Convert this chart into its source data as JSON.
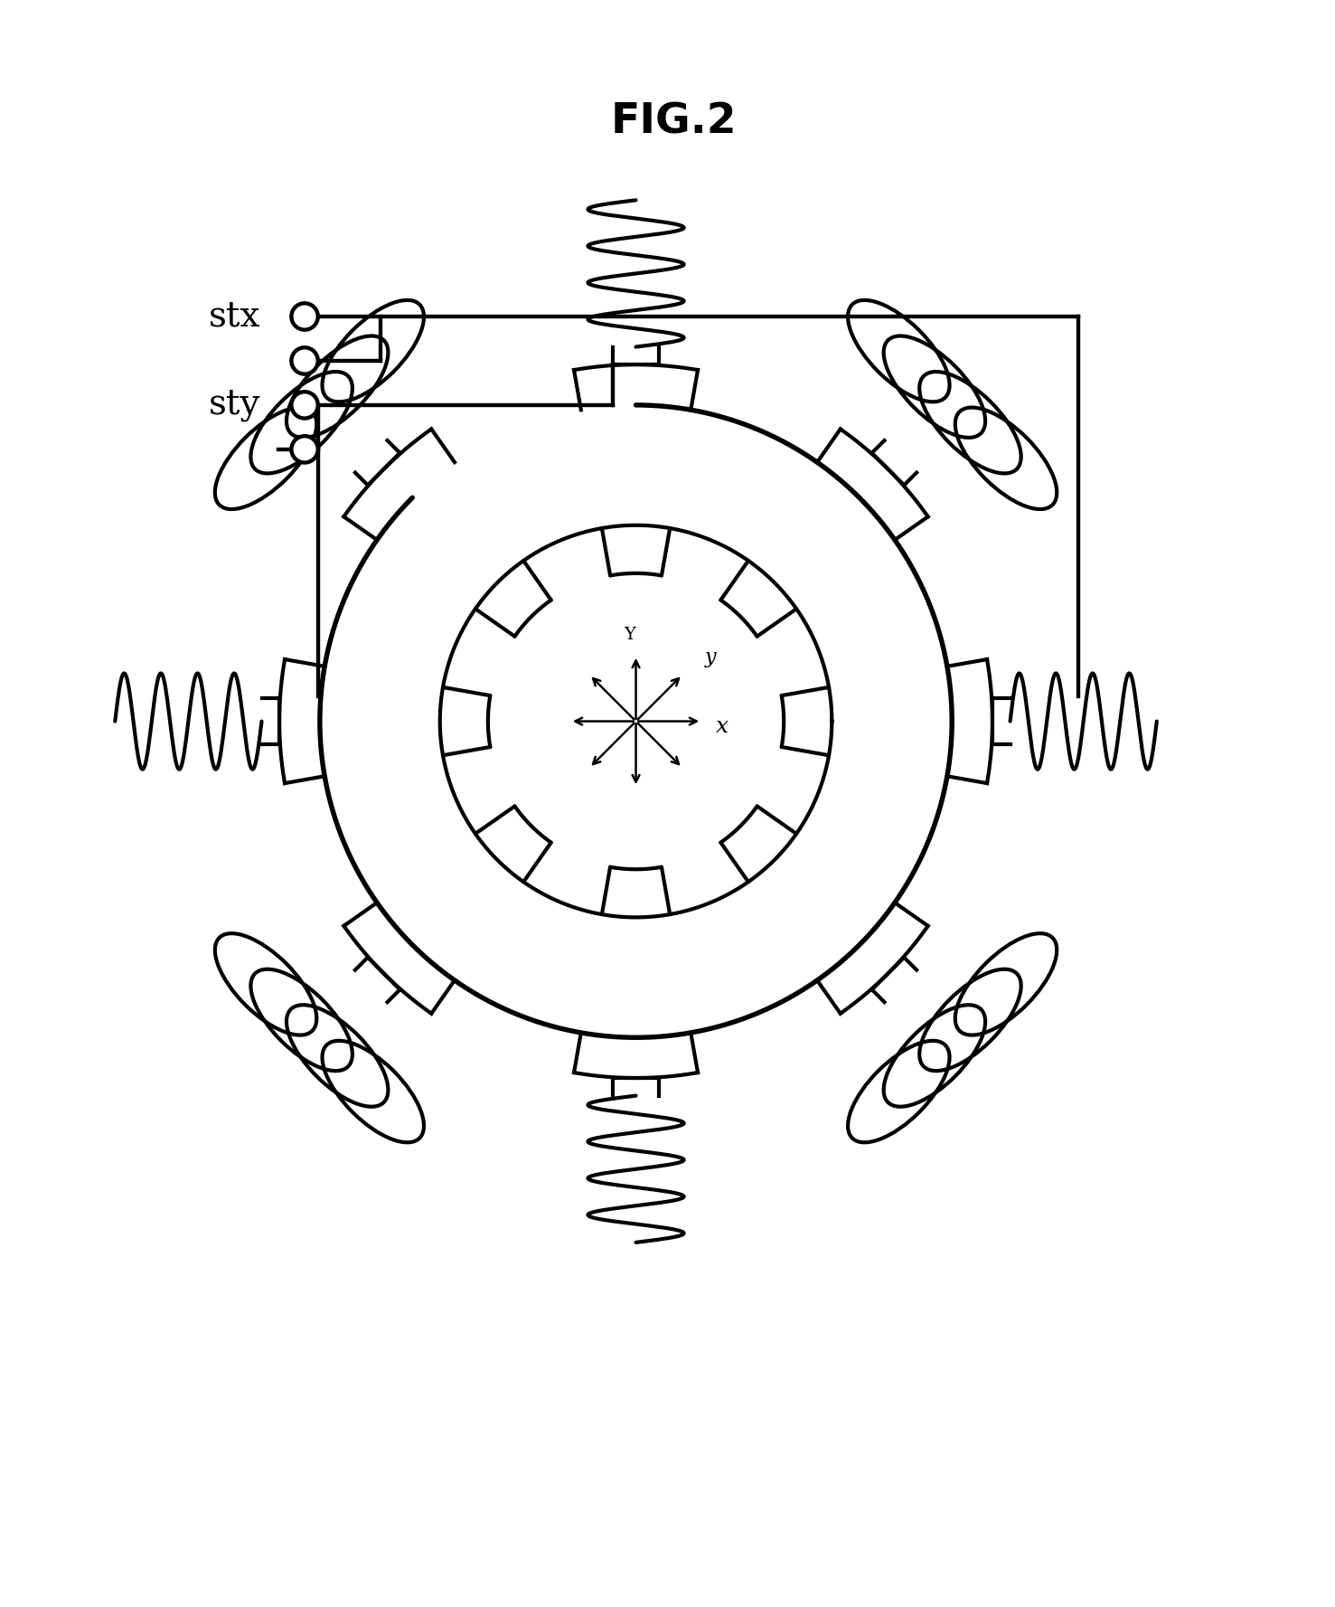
{
  "title": "FIG.2",
  "title_fontsize": 34,
  "title_fontweight": "bold",
  "bg_color": "#ffffff",
  "line_color": "#000000",
  "lw": 3.0,
  "stx_label": "stx",
  "sty_label": "sty"
}
